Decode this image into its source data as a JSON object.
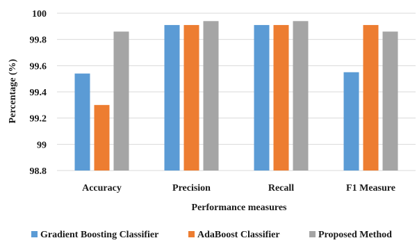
{
  "chart_data": {
    "type": "bar",
    "categories": [
      "Accuracy",
      "Precision",
      "Recall",
      "F1 Measure"
    ],
    "series": [
      {
        "name": "Gradient Boosting Classifier",
        "values": [
          99.54,
          99.91,
          99.91,
          99.55
        ],
        "color": "#5b9bd5"
      },
      {
        "name": "AdaBoost Classifier",
        "values": [
          99.3,
          99.91,
          99.91,
          99.91
        ],
        "color": "#ed7d31"
      },
      {
        "name": "Proposed Method",
        "values": [
          99.86,
          99.94,
          99.94,
          99.86
        ],
        "color": "#a5a5a5"
      }
    ],
    "yticks": [
      "98.8",
      "99",
      "99.2",
      "99.4",
      "99.6",
      "99.8",
      "100"
    ],
    "ylim": [
      98.8,
      100
    ],
    "xlabel": "Performance measures",
    "ylabel": "Percentage (%)",
    "grid": true,
    "legend_position": "bottom"
  }
}
